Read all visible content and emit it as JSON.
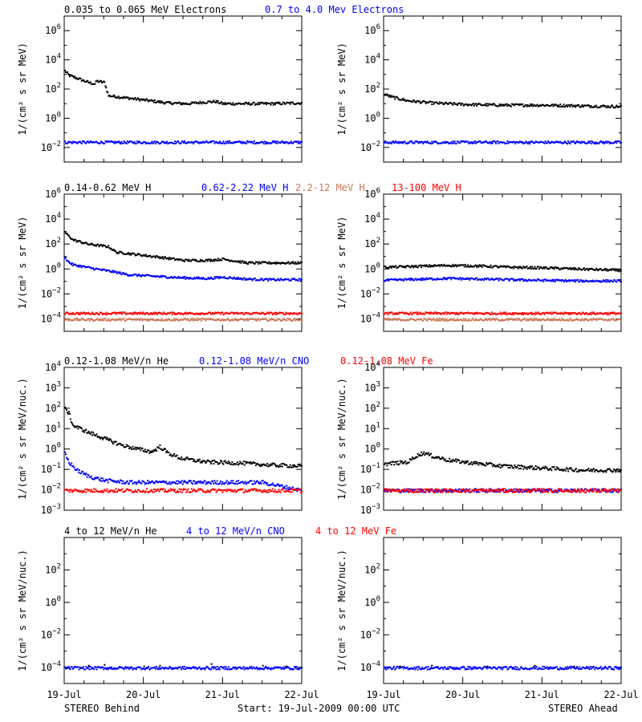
{
  "colors": {
    "black": "#000000",
    "blue": "#0000ff",
    "tan": "#cc7755",
    "red": "#ff0000",
    "frame": "#000000",
    "background": "#ffffff"
  },
  "footer": {
    "left": "STEREO Behind",
    "center": "Start: 19-Jul-2009 00:00 UTC",
    "right": "STEREO Ahead"
  },
  "xaxis": {
    "range": [
      0,
      3
    ],
    "tick_positions": [
      0,
      1,
      2,
      3
    ],
    "tick_labels": [
      "19-Jul",
      "20-Jul",
      "21-Jul",
      "22-Jul"
    ],
    "minor_per_day": 4
  },
  "chart_data": [
    {
      "type": "scatter",
      "row": 0,
      "ylabel": "1/(cm² s sr MeV)",
      "yscale": "log",
      "ylim_exp": [
        -3,
        7
      ],
      "tick_exps": [
        -2,
        0,
        2,
        4,
        6
      ],
      "legend": [
        {
          "text": "0.035 to 0.065 MeV Electrons",
          "color": "black"
        },
        {
          "text": "0.7 to 4.0 Mev Electrons",
          "color": "blue"
        }
      ],
      "panels": [
        {
          "side": "STEREO Behind",
          "series": [
            {
              "color": "black",
              "points": [
                [
                  0,
                  3.3
                ],
                [
                  0.05,
                  3.0
                ],
                [
                  0.1,
                  2.9
                ],
                [
                  0.2,
                  2.7
                ],
                [
                  0.3,
                  2.5
                ],
                [
                  0.38,
                  2.4
                ],
                [
                  0.4,
                  2.6
                ],
                [
                  0.5,
                  2.5
                ],
                [
                  0.55,
                  1.6
                ],
                [
                  0.7,
                  1.5
                ],
                [
                  1.0,
                  1.3
                ],
                [
                  1.3,
                  1.1
                ],
                [
                  1.55,
                  1.05
                ],
                [
                  1.75,
                  1.15
                ],
                [
                  1.9,
                  1.2
                ],
                [
                  2.0,
                  1.05
                ],
                [
                  2.3,
                  1.05
                ],
                [
                  2.6,
                  1.05
                ],
                [
                  3.0,
                  1.1
                ]
              ]
            },
            {
              "color": "blue",
              "points": [
                [
                  0,
                  -1.6
                ],
                [
                  0.5,
                  -1.6
                ],
                [
                  1.0,
                  -1.6
                ],
                [
                  1.5,
                  -1.6
                ],
                [
                  2.0,
                  -1.6
                ],
                [
                  2.5,
                  -1.6
                ],
                [
                  3.0,
                  -1.6
                ]
              ]
            }
          ]
        },
        {
          "side": "STEREO Ahead",
          "series": [
            {
              "color": "black",
              "points": [
                [
                  0,
                  1.7
                ],
                [
                  0.1,
                  1.5
                ],
                [
                  0.3,
                  1.25
                ],
                [
                  0.6,
                  1.1
                ],
                [
                  1.0,
                  1.0
                ],
                [
                  1.5,
                  0.95
                ],
                [
                  2.0,
                  0.95
                ],
                [
                  2.5,
                  0.9
                ],
                [
                  3.0,
                  0.85
                ]
              ]
            },
            {
              "color": "blue",
              "points": [
                [
                  0,
                  -1.6
                ],
                [
                  0.5,
                  -1.6
                ],
                [
                  1.0,
                  -1.6
                ],
                [
                  1.5,
                  -1.6
                ],
                [
                  2.0,
                  -1.6
                ],
                [
                  2.5,
                  -1.6
                ],
                [
                  3.0,
                  -1.6
                ]
              ]
            }
          ]
        }
      ]
    },
    {
      "type": "scatter",
      "row": 1,
      "ylabel": "1/(cm² s sr MeV)",
      "yscale": "log",
      "ylim_exp": [
        -5,
        6
      ],
      "tick_exps": [
        -4,
        -2,
        0,
        2,
        4,
        6
      ],
      "legend": [
        {
          "text": "0.14-0.62 MeV H",
          "color": "black"
        },
        {
          "text": "0.62-2.22 MeV H",
          "color": "blue"
        },
        {
          "text": "2.2-12 MeV H",
          "color": "tan"
        },
        {
          "text": "13-100 MeV H",
          "color": "red"
        }
      ],
      "panels": [
        {
          "side": "STEREO Behind",
          "series": [
            {
              "color": "black",
              "points": [
                [
                  0,
                  3.0
                ],
                [
                  0.05,
                  2.7
                ],
                [
                  0.1,
                  2.4
                ],
                [
                  0.3,
                  2.05
                ],
                [
                  0.55,
                  1.85
                ],
                [
                  0.65,
                  1.4
                ],
                [
                  0.8,
                  1.3
                ],
                [
                  1.0,
                  1.15
                ],
                [
                  1.2,
                  1.0
                ],
                [
                  1.5,
                  0.75
                ],
                [
                  1.8,
                  0.75
                ],
                [
                  2.0,
                  0.85
                ],
                [
                  2.3,
                  0.55
                ],
                [
                  2.6,
                  0.55
                ],
                [
                  3.0,
                  0.55
                ]
              ]
            },
            {
              "color": "blue",
              "points": [
                [
                  0,
                  1.0
                ],
                [
                  0.05,
                  0.6
                ],
                [
                  0.1,
                  0.4
                ],
                [
                  0.4,
                  0.05
                ],
                [
                  0.6,
                  -0.15
                ],
                [
                  0.8,
                  -0.4
                ],
                [
                  1.2,
                  -0.55
                ],
                [
                  1.5,
                  -0.65
                ],
                [
                  1.8,
                  -0.7
                ],
                [
                  2.0,
                  -0.6
                ],
                [
                  2.3,
                  -0.75
                ],
                [
                  2.6,
                  -0.8
                ],
                [
                  3.0,
                  -0.8
                ]
              ]
            },
            {
              "color": "red",
              "points": [
                [
                  0,
                  -3.5
                ],
                [
                  1.0,
                  -3.5
                ],
                [
                  2.0,
                  -3.5
                ],
                [
                  3.0,
                  -3.5
                ]
              ]
            },
            {
              "color": "tan",
              "points": [
                [
                  0,
                  -4.0
                ],
                [
                  1.0,
                  -4.0
                ],
                [
                  2.0,
                  -4.0
                ],
                [
                  3.0,
                  -4.0
                ]
              ]
            }
          ]
        },
        {
          "side": "STEREO Ahead",
          "series": [
            {
              "color": "black",
              "points": [
                [
                  0,
                  0.2
                ],
                [
                  0.3,
                  0.25
                ],
                [
                  0.8,
                  0.35
                ],
                [
                  1.2,
                  0.3
                ],
                [
                  1.6,
                  0.2
                ],
                [
                  2.0,
                  0.15
                ],
                [
                  2.5,
                  0.05
                ],
                [
                  3.0,
                  -0.05
                ]
              ]
            },
            {
              "color": "blue",
              "points": [
                [
                  0,
                  -0.85
                ],
                [
                  0.5,
                  -0.75
                ],
                [
                  0.8,
                  -0.7
                ],
                [
                  1.2,
                  -0.75
                ],
                [
                  1.6,
                  -0.8
                ],
                [
                  2.0,
                  -0.85
                ],
                [
                  2.5,
                  -0.9
                ],
                [
                  3.0,
                  -0.9
                ]
              ]
            },
            {
              "color": "red",
              "points": [
                [
                  0,
                  -3.5
                ],
                [
                  1.0,
                  -3.5
                ],
                [
                  2.0,
                  -3.5
                ],
                [
                  3.0,
                  -3.5
                ]
              ]
            },
            {
              "color": "tan",
              "points": [
                [
                  0,
                  -4.0
                ],
                [
                  1.0,
                  -4.0
                ],
                [
                  2.0,
                  -4.0
                ],
                [
                  3.0,
                  -4.0
                ]
              ]
            }
          ]
        }
      ]
    },
    {
      "type": "scatter",
      "row": 2,
      "ylabel": "1/(cm² s sr MeV/nuc.)",
      "yscale": "log",
      "ylim_exp": [
        -3,
        4
      ],
      "tick_exps": [
        -3,
        -2,
        -1,
        0,
        1,
        2,
        3,
        4
      ],
      "legend": [
        {
          "text": "0.12-1.08 MeV/n He",
          "color": "black"
        },
        {
          "text": "0.12-1.08 MeV/n CNO",
          "color": "blue"
        },
        {
          "text": "0.12-1.08 MeV Fe",
          "color": "red"
        }
      ],
      "panels": [
        {
          "side": "STEREO Behind",
          "series": [
            {
              "color": "black",
              "points": [
                [
                  0,
                  2.0
                ],
                [
                  0.05,
                  1.8
                ],
                [
                  0.1,
                  1.2
                ],
                [
                  0.3,
                  0.85
                ],
                [
                  0.5,
                  0.55
                ],
                [
                  0.7,
                  0.25
                ],
                [
                  0.9,
                  0.05
                ],
                [
                  1.1,
                  -0.1
                ],
                [
                  1.2,
                  0.15
                ],
                [
                  1.3,
                  -0.15
                ],
                [
                  1.45,
                  -0.4
                ],
                [
                  1.6,
                  -0.5
                ],
                [
                  1.8,
                  -0.6
                ],
                [
                  2.2,
                  -0.65
                ],
                [
                  2.6,
                  -0.75
                ],
                [
                  3.0,
                  -0.8
                ]
              ]
            },
            {
              "color": "blue",
              "points": [
                [
                  0,
                  -0.2
                ],
                [
                  0.05,
                  -0.6
                ],
                [
                  0.15,
                  -1.0
                ],
                [
                  0.3,
                  -1.3
                ],
                [
                  0.5,
                  -1.5
                ],
                [
                  0.8,
                  -1.6
                ],
                [
                  1.5,
                  -1.6
                ],
                [
                  2.5,
                  -1.6
                ],
                [
                  3.0,
                  -2.0
                ]
              ]
            },
            {
              "color": "red",
              "points": [
                [
                  0,
                  -2.0
                ],
                [
                  1.0,
                  -2.0
                ],
                [
                  2.0,
                  -2.0
                ],
                [
                  3.0,
                  -2.0
                ]
              ]
            }
          ]
        },
        {
          "side": "STEREO Ahead",
          "series": [
            {
              "color": "black",
              "points": [
                [
                  0,
                  -0.7
                ],
                [
                  0.3,
                  -0.6
                ],
                [
                  0.4,
                  -0.3
                ],
                [
                  0.5,
                  -0.15
                ],
                [
                  0.6,
                  -0.3
                ],
                [
                  0.8,
                  -0.5
                ],
                [
                  1.0,
                  -0.6
                ],
                [
                  1.5,
                  -0.8
                ],
                [
                  2.0,
                  -0.9
                ],
                [
                  2.5,
                  -1.0
                ],
                [
                  3.0,
                  -1.0
                ]
              ]
            },
            {
              "color": "blue",
              "points": [
                [
                  0,
                  -2.0
                ],
                [
                  1.0,
                  -2.0
                ],
                [
                  2.0,
                  -2.0
                ],
                [
                  3.0,
                  -2.0
                ]
              ]
            },
            {
              "color": "red",
              "points": [
                [
                  0,
                  -2.0
                ],
                [
                  1.0,
                  -2.0
                ],
                [
                  2.0,
                  -2.0
                ],
                [
                  3.0,
                  -2.0
                ]
              ]
            }
          ]
        }
      ]
    },
    {
      "type": "scatter",
      "row": 3,
      "ylabel": "1/(cm² s sr MeV/nuc.)",
      "yscale": "log",
      "ylim_exp": [
        -5,
        4
      ],
      "tick_exps": [
        -4,
        -2,
        0,
        2
      ],
      "legend": [
        {
          "text": "4 to 12 MeV/n He",
          "color": "black"
        },
        {
          "text": "4 to 12 MeV/n CNO",
          "color": "blue"
        },
        {
          "text": "4 to 12 MeV Fe",
          "color": "red"
        }
      ],
      "panels": [
        {
          "side": "STEREO Behind",
          "series": [
            {
              "color": "blue",
              "points": [
                [
                  0,
                  -4.0
                ],
                [
                  1.0,
                  -4.0
                ],
                [
                  2.0,
                  -4.0
                ],
                [
                  3.0,
                  -4.0
                ]
              ]
            },
            {
              "color": "black",
              "points": [
                [
                  0.3,
                  -3.85
                ],
                [
                  0.5,
                  -3.8
                ],
                [
                  1.0,
                  -3.9
                ],
                [
                  1.2,
                  -3.85
                ],
                [
                  1.85,
                  -3.75
                ],
                [
                  2.5,
                  -3.85
                ],
                [
                  2.8,
                  -3.9
                ]
              ]
            }
          ]
        },
        {
          "side": "STEREO Ahead",
          "series": [
            {
              "color": "blue",
              "points": [
                [
                  0,
                  -4.0
                ],
                [
                  1.0,
                  -4.0
                ],
                [
                  2.0,
                  -4.0
                ],
                [
                  3.0,
                  -4.0
                ]
              ]
            },
            {
              "color": "black",
              "points": [
                [
                  0.2,
                  -3.9
                ],
                [
                  0.6,
                  -3.85
                ],
                [
                  1.3,
                  -3.9
                ],
                [
                  1.9,
                  -3.85
                ],
                [
                  2.4,
                  -3.9
                ]
              ]
            }
          ]
        }
      ]
    }
  ]
}
